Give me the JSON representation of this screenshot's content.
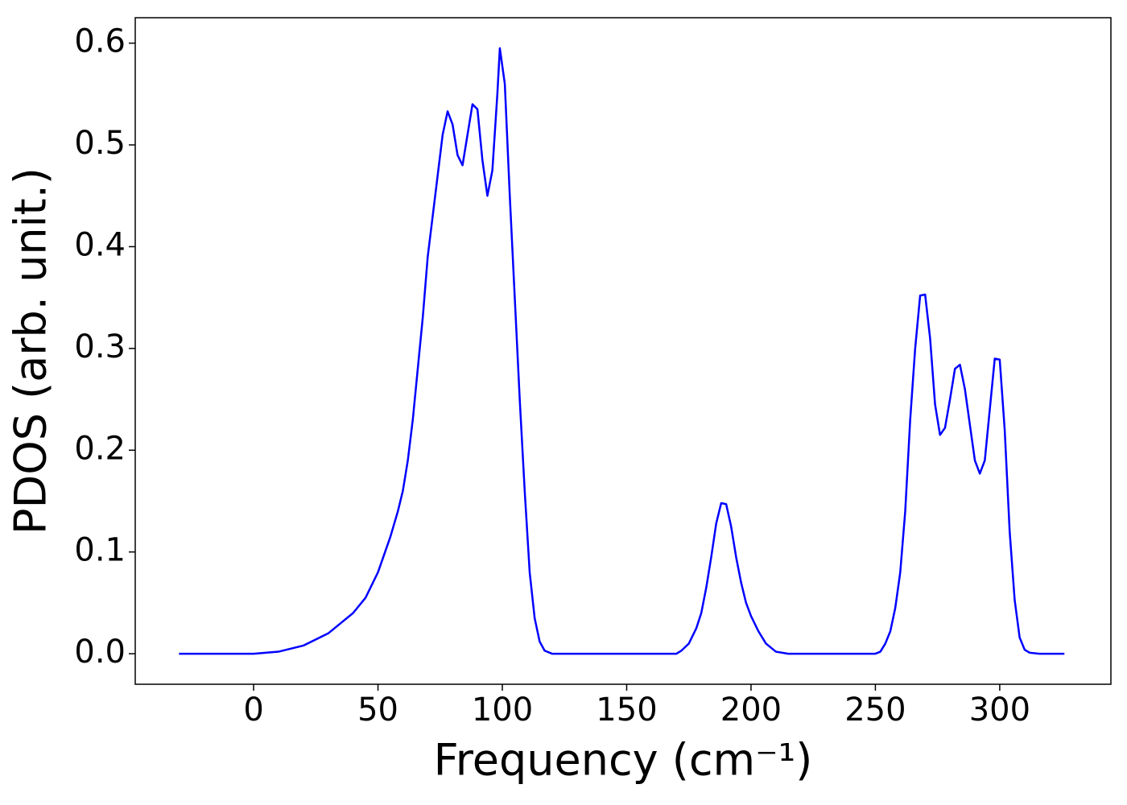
{
  "chart_data": {
    "type": "line",
    "x_label": "Frequency (cm⁻¹)",
    "y_label": "PDOS (arb. unit.)",
    "xlim": [
      -47.6,
      344.7
    ],
    "ylim": [
      -0.03,
      0.625
    ],
    "xticks": [
      0,
      50,
      100,
      150,
      200,
      250,
      300
    ],
    "yticks": [
      {
        "value": 0,
        "label": "0.0"
      },
      0.1,
      0.2,
      0.3,
      0.4,
      0.5,
      0.6
    ],
    "grid": false,
    "x": [
      -30,
      0,
      10,
      20,
      30,
      40,
      45,
      50,
      55,
      58,
      60,
      62,
      64,
      66,
      68,
      70,
      72,
      74,
      76,
      78,
      80,
      82,
      84,
      86,
      88,
      90,
      92,
      94,
      96,
      98,
      99,
      101,
      103,
      105,
      107,
      109,
      111,
      113,
      115,
      117,
      120,
      170,
      172,
      175,
      178,
      180,
      182,
      184,
      186,
      188,
      190,
      192,
      194,
      196,
      198,
      200,
      203,
      206,
      210,
      215,
      250,
      252,
      254,
      256,
      258,
      260,
      262,
      264,
      266,
      268,
      270,
      272,
      274,
      276,
      278,
      280,
      282,
      284,
      286,
      288,
      290,
      292,
      294,
      296,
      298,
      300,
      302,
      304,
      306,
      308,
      310,
      312,
      316,
      326
    ],
    "series": [
      {
        "color": "#0000ff",
        "values": [
          0,
          0,
          0.002,
          0.008,
          0.02,
          0.04,
          0.055,
          0.08,
          0.115,
          0.14,
          0.16,
          0.19,
          0.23,
          0.28,
          0.33,
          0.39,
          0.43,
          0.47,
          0.51,
          0.533,
          0.52,
          0.49,
          0.48,
          0.51,
          0.54,
          0.535,
          0.485,
          0.45,
          0.475,
          0.55,
          0.595,
          0.56,
          0.45,
          0.35,
          0.25,
          0.16,
          0.08,
          0.035,
          0.012,
          0.003,
          0,
          0,
          0.003,
          0.01,
          0.025,
          0.04,
          0.065,
          0.095,
          0.128,
          0.148,
          0.147,
          0.125,
          0.095,
          0.07,
          0.05,
          0.037,
          0.022,
          0.01,
          0.002,
          0,
          0,
          0.002,
          0.01,
          0.022,
          0.045,
          0.08,
          0.14,
          0.23,
          0.3,
          0.352,
          0.353,
          0.31,
          0.245,
          0.215,
          0.222,
          0.25,
          0.28,
          0.284,
          0.26,
          0.225,
          0.19,
          0.177,
          0.19,
          0.24,
          0.29,
          0.289,
          0.22,
          0.12,
          0.053,
          0.016,
          0.004,
          0.001,
          0,
          0
        ]
      }
    ]
  }
}
